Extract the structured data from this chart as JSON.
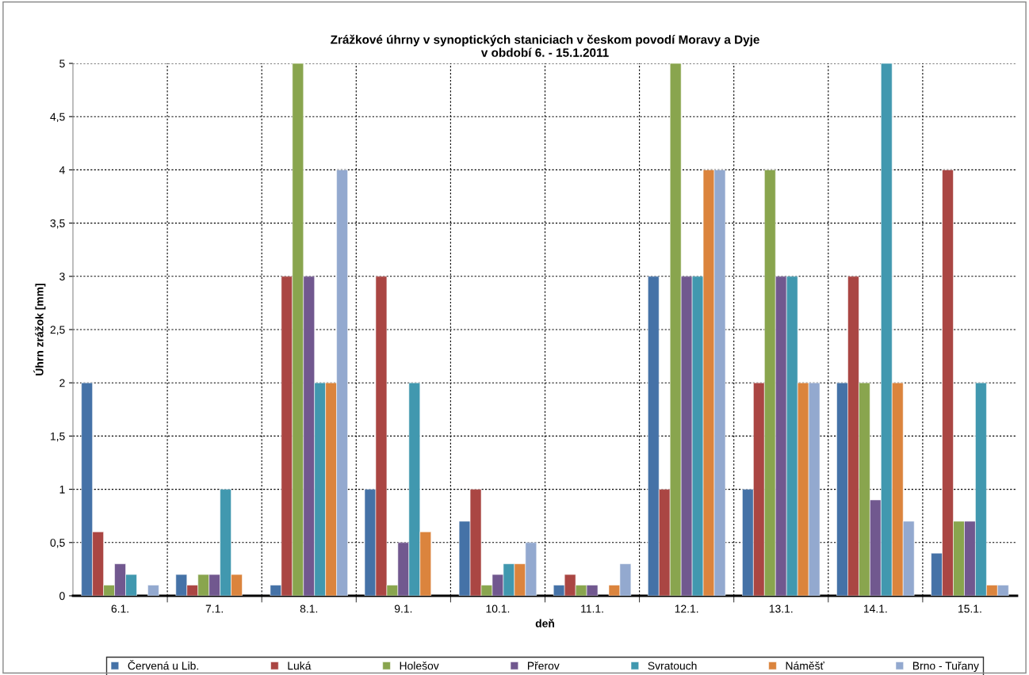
{
  "chart_data": {
    "type": "bar",
    "title": "Zrážkové úhrny v synoptických staniciach v českom povodí Moravy a Dyje\nv období 6. - 15.1.2011",
    "xlabel": "deň",
    "ylabel": "Úhrn zrážok [mm]",
    "categories": [
      "6.1.",
      "7.1.",
      "8.1.",
      "9.1.",
      "10.1.",
      "11.1.",
      "12.1.",
      "13.1.",
      "14.1.",
      "15.1."
    ],
    "series": [
      {
        "name": "Červená u Lib.",
        "color": "#4572a7",
        "values": [
          2,
          0.2,
          0.1,
          1,
          0.7,
          0.1,
          3,
          1,
          2,
          0.4
        ]
      },
      {
        "name": "Luká",
        "color": "#aa4643",
        "values": [
          0.6,
          0.1,
          3,
          3,
          1,
          0.2,
          1,
          2,
          3,
          4
        ]
      },
      {
        "name": "Holešov",
        "color": "#89a54e",
        "values": [
          0.1,
          0.2,
          5,
          0.1,
          0.1,
          0.1,
          5,
          4,
          2,
          0.7
        ]
      },
      {
        "name": "Přerov",
        "color": "#71588f",
        "values": [
          0.3,
          0.2,
          3,
          0.5,
          0.2,
          0.1,
          3,
          3,
          0.9,
          0.7
        ]
      },
      {
        "name": "Svratouch",
        "color": "#4198af",
        "values": [
          0.2,
          1,
          2,
          2,
          0.3,
          null,
          3,
          3,
          5,
          2
        ]
      },
      {
        "name": "Náměšť",
        "color": "#db843d",
        "values": [
          null,
          0.2,
          2,
          0.6,
          0.3,
          0.1,
          4,
          2,
          2,
          0.1
        ]
      },
      {
        "name": "Brno - Tuřany",
        "color": "#93a9cf",
        "values": [
          0.1,
          null,
          4,
          null,
          0.5,
          0.3,
          4,
          2,
          0.7,
          0.1
        ]
      }
    ],
    "ylim": [
      0,
      5
    ],
    "yticks": [
      0,
      {
        "value": 0.5,
        "label": "0,5"
      },
      1,
      {
        "value": 1.5,
        "label": "1,5"
      },
      2,
      {
        "value": 2.5,
        "label": "2,5"
      },
      3,
      {
        "value": 3.5,
        "label": "3,5"
      },
      4,
      {
        "value": 4.5,
        "label": "4,5"
      },
      5
    ],
    "grid": true,
    "legend": "bottom"
  }
}
